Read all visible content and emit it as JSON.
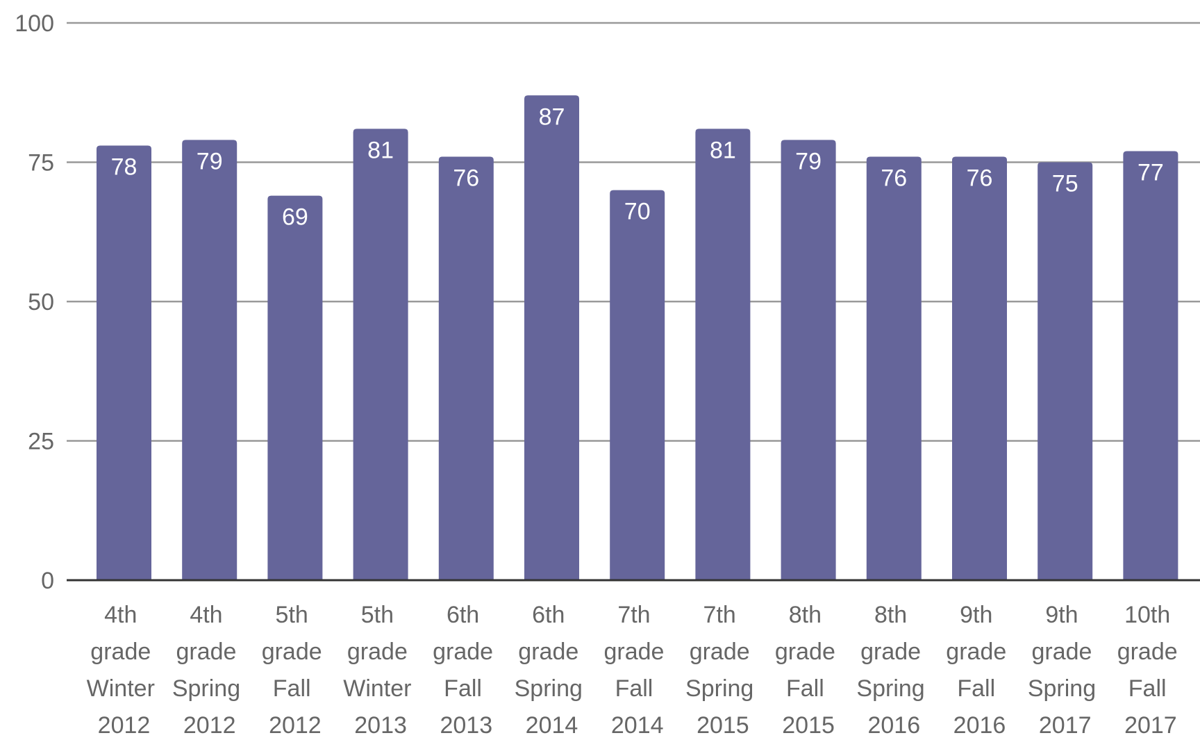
{
  "chart_data": {
    "type": "bar",
    "categories": [
      "4th grade Winter 2012",
      "4th grade Spring 2012",
      "5th grade Fall 2012",
      "5th grade Winter 2013",
      "6th grade Fall 2013",
      "6th grade Spring 2014",
      "7th grade Fall 2014",
      "7th grade Spring 2015",
      "8th grade Fall 2015",
      "8th grade Spring 2016",
      "9th grade Fall 2016",
      "9th grade Spring 2017",
      "10th grade Fall 2017"
    ],
    "values": [
      78,
      79,
      69,
      81,
      76,
      87,
      70,
      81,
      79,
      76,
      76,
      75,
      77
    ],
    "color": "#65659a",
    "ylim": [
      0,
      100
    ],
    "yticks": [
      0,
      25,
      50,
      75,
      100
    ],
    "grid": true
  }
}
